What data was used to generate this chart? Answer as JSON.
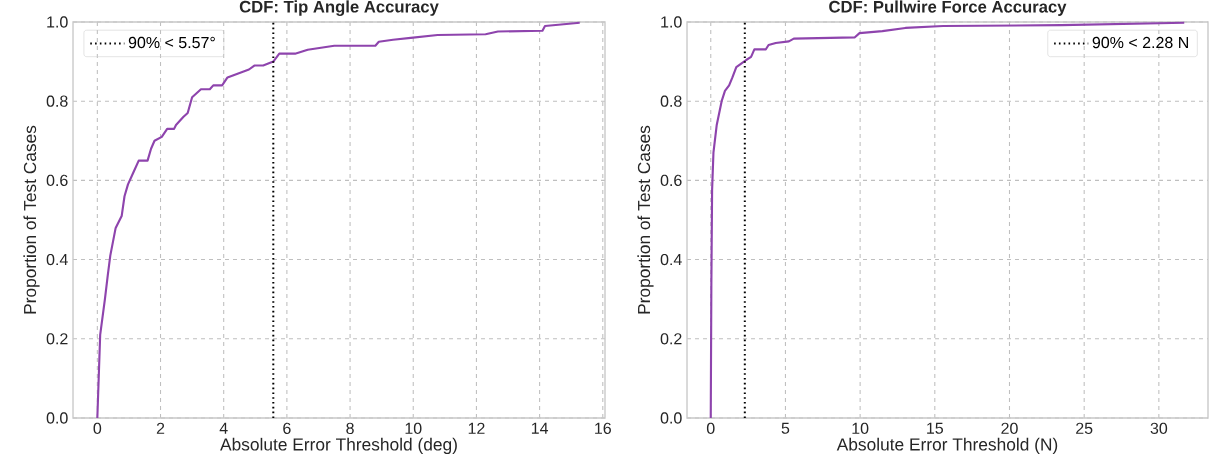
{
  "chart_data": [
    {
      "type": "line",
      "title": "CDF: Tip Angle Accuracy",
      "xlabel": "Absolute Error Threshold (deg)",
      "ylabel": "Proportion of Test Cases",
      "x": [
        0,
        0.09,
        0.24,
        0.33,
        0.41,
        0.58,
        0.77,
        0.86,
        0.97,
        1.14,
        1.31,
        1.59,
        1.7,
        1.81,
        2.04,
        2.21,
        2.43,
        2.49,
        2.72,
        2.86,
        3.0,
        3.28,
        3.56,
        3.67,
        3.95,
        4.12,
        4.46,
        4.8,
        4.97,
        5.25,
        5.57,
        5.76,
        6.26,
        6.66,
        7.5,
        8.8,
        8.91,
        9.36,
        9.92,
        10.77,
        12.29,
        12.68,
        14.09,
        14.17,
        15.27
      ],
      "series": [
        {
          "color": "#8e44ad",
          "values": [
            0,
            0.21,
            0.3,
            0.36,
            0.41,
            0.48,
            0.51,
            0.56,
            0.59,
            0.62,
            0.65,
            0.65,
            0.68,
            0.7,
            0.71,
            0.73,
            0.73,
            0.74,
            0.76,
            0.77,
            0.81,
            0.83,
            0.83,
            0.84,
            0.84,
            0.86,
            0.87,
            0.88,
            0.89,
            0.89,
            0.9,
            0.92,
            0.92,
            0.93,
            0.94,
            0.94,
            0.95,
            0.955,
            0.96,
            0.967,
            0.969,
            0.976,
            0.978,
            0.99,
            0.998
          ]
        }
      ],
      "xlim": [
        -0.77,
        16.07
      ],
      "ylim": [
        0,
        1
      ],
      "xticks": [
        0,
        2,
        4,
        6,
        8,
        10,
        12,
        14,
        16
      ],
      "yticks": [
        {
          "value": 0,
          "label": "0.0"
        },
        {
          "value": 0.2,
          "label": "0.2"
        },
        {
          "value": 0.4,
          "label": "0.4"
        },
        {
          "value": 0.6,
          "label": "0.6"
        },
        {
          "value": 0.8,
          "label": "0.8"
        },
        {
          "value": 1,
          "label": "1.0"
        }
      ],
      "grid": true,
      "legend": "top left",
      "ref_lines": [
        {
          "axis": "x",
          "value": 5.57,
          "label": "90% < 5.57°",
          "color": "#000000",
          "line_style": "dotted"
        }
      ]
    },
    {
      "type": "line",
      "title": "CDF: Pullwire Force Accuracy",
      "xlabel": "Absolute Error Threshold (N)",
      "ylabel": "Proportion of Test Cases",
      "x": [
        0,
        0.04,
        0.09,
        0.18,
        0.4,
        0.73,
        0.95,
        1.23,
        1.45,
        1.71,
        2.04,
        2.37,
        2.7,
        2.92,
        3.69,
        3.87,
        4.35,
        5.23,
        5.56,
        9.63,
        9.96,
        11.49,
        13.03,
        15.56,
        23.47,
        31.7
      ],
      "series": [
        {
          "color": "#8e44ad",
          "values": [
            0,
            0.335,
            0.576,
            0.67,
            0.74,
            0.8,
            0.826,
            0.84,
            0.86,
            0.886,
            0.895,
            0.904,
            0.912,
            0.931,
            0.931,
            0.942,
            0.947,
            0.951,
            0.958,
            0.961,
            0.972,
            0.977,
            0.985,
            0.99,
            0.992,
            0.998
          ]
        }
      ],
      "xlim": [
        -1.59,
        33.29
      ],
      "ylim": [
        0,
        1
      ],
      "xticks": [
        0,
        5,
        10,
        15,
        20,
        25,
        30
      ],
      "yticks": [
        {
          "value": 0,
          "label": "0.0"
        },
        {
          "value": 0.2,
          "label": "0.2"
        },
        {
          "value": 0.4,
          "label": "0.4"
        },
        {
          "value": 0.6,
          "label": "0.6"
        },
        {
          "value": 0.8,
          "label": "0.8"
        },
        {
          "value": 1,
          "label": "1.0"
        }
      ],
      "grid": true,
      "legend": "top right",
      "ref_lines": [
        {
          "axis": "x",
          "value": 2.28,
          "label": "90% < 2.28 N",
          "color": "#000000",
          "line_style": "dotted"
        }
      ]
    }
  ]
}
